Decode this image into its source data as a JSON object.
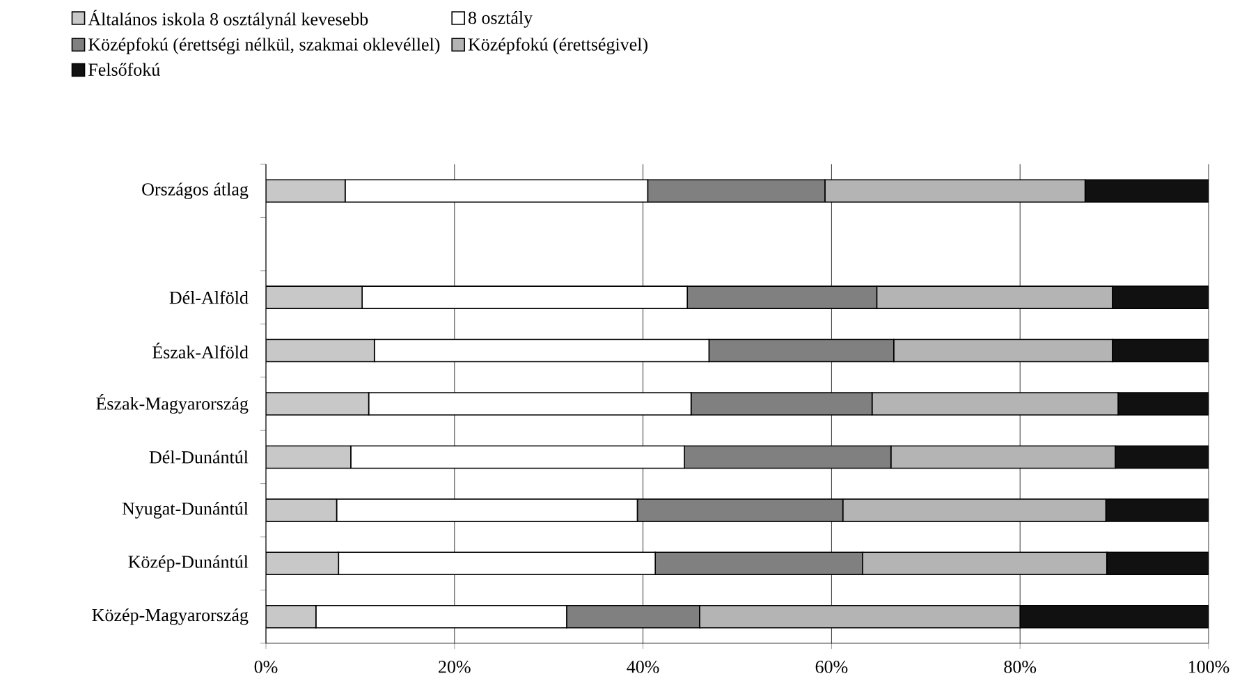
{
  "chart_data": {
    "type": "bar",
    "orientation": "horizontal",
    "stacked": true,
    "categories": [
      "Országos átlag",
      null,
      "Dél-Alföld",
      "Észak-Alföld",
      "Észak-Magyarország",
      "Dél-Dunántúl",
      "Nyugat-Dunántúl",
      "Közép-Dunántúl",
      "Közép-Magyarország"
    ],
    "series": [
      {
        "name": "Általános iskola 8 osztálynál kevesebb",
        "color": "#c8c8c8",
        "values": [
          8.4,
          null,
          10.2,
          11.5,
          10.9,
          9.0,
          7.5,
          7.7,
          5.3
        ]
      },
      {
        "name": "8 osztály",
        "color": "#ffffff",
        "values": [
          32.1,
          null,
          34.5,
          35.5,
          34.2,
          35.4,
          31.9,
          33.6,
          26.6
        ]
      },
      {
        "name": "Középfokú (érettségi nélkül, szakmai oklevéllel)",
        "color": "#808080",
        "values": [
          18.8,
          null,
          20.1,
          19.6,
          19.2,
          21.9,
          21.8,
          22.0,
          14.1
        ]
      },
      {
        "name": "Középfokú (érettségivel)",
        "color": "#b4b4b4",
        "values": [
          27.6,
          null,
          25.0,
          23.2,
          26.1,
          23.8,
          27.9,
          25.9,
          34.0
        ]
      },
      {
        "name": "Felsőfokú",
        "color": "#111111",
        "values": [
          13.1,
          null,
          10.2,
          10.2,
          9.6,
          9.9,
          10.9,
          10.8,
          20.0
        ]
      }
    ],
    "xlim": [
      0,
      100
    ],
    "xticks": [
      {
        "value": 0,
        "label": "0%"
      },
      {
        "value": 20,
        "label": "20%"
      },
      {
        "value": 40,
        "label": "40%"
      },
      {
        "value": 60,
        "label": "60%"
      },
      {
        "value": 80,
        "label": "80%"
      },
      {
        "value": 100,
        "label": "100%"
      }
    ],
    "grid": "x",
    "legend": "top"
  }
}
